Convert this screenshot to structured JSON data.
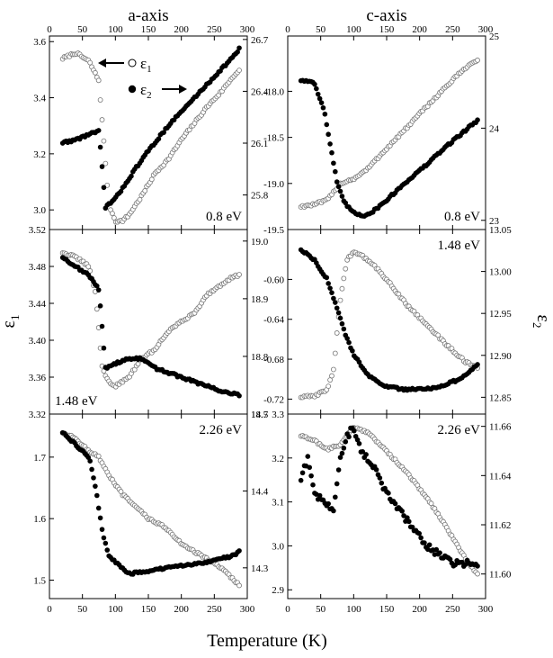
{
  "figure": {
    "col_titles": [
      "a-axis",
      "c-axis"
    ],
    "x_label": "Temperature (K)",
    "left_label_main": "ε",
    "left_label_sub": "1",
    "right_label_main": "ε",
    "right_label_sub": "2",
    "legend": [
      {
        "main": "ε",
        "sub": "1",
        "marker": "open circle",
        "arrow": "left"
      },
      {
        "main": "ε",
        "sub": "2",
        "marker": "filled circle",
        "arrow": "right"
      }
    ]
  },
  "chart_data": [
    {
      "type": "scatter",
      "panel": "a-axis-0.8eV",
      "column": "a-axis",
      "annotation": "0.8 eV",
      "annot_pos": "bottom-right",
      "xlim": [
        0,
        300
      ],
      "ylim": [
        2.93,
        3.62
      ],
      "y2lim": [
        25.6,
        26.72
      ],
      "x_ticks": [
        "0",
        "50",
        "100",
        "150",
        "200",
        "250",
        "300"
      ],
      "y_ticks": [
        3.0,
        3.2,
        3.4,
        3.6
      ],
      "y_tick_labels": [
        "3.0",
        "3.2",
        "3.4",
        "3.6"
      ],
      "y2_ticks": [
        25.8,
        26.1,
        26.4,
        26.7
      ],
      "y2_tick_labels": [
        "25.8",
        "26.1",
        "26.4",
        "26.7"
      ],
      "series": [
        {
          "name": "ε1",
          "axis": "left",
          "marker": "open",
          "x": [
            20,
            40,
            60,
            75,
            90,
            100,
            110,
            120,
            140,
            160,
            180,
            200,
            220,
            240,
            260,
            280,
            290
          ],
          "y": [
            3.54,
            3.56,
            3.53,
            3.46,
            3.02,
            2.96,
            2.96,
            2.98,
            3.05,
            3.13,
            3.18,
            3.25,
            3.31,
            3.37,
            3.42,
            3.48,
            3.5
          ]
        },
        {
          "name": "ε2",
          "axis": "left",
          "marker": "filled",
          "x": [
            20,
            40,
            60,
            75,
            85,
            100,
            120,
            140,
            160,
            180,
            200,
            220,
            240,
            260,
            280,
            290
          ],
          "y": [
            3.24,
            3.25,
            3.27,
            3.28,
            3.01,
            3.04,
            3.11,
            3.18,
            3.24,
            3.3,
            3.35,
            3.4,
            3.45,
            3.5,
            3.55,
            3.58
          ]
        }
      ]
    },
    {
      "type": "scatter",
      "panel": "c-axis-0.8eV",
      "column": "c-axis",
      "annotation": "0.8 eV",
      "annot_pos": "bottom-right",
      "xlim": [
        0,
        300
      ],
      "ylim": [
        -19.5,
        -17.4
      ],
      "y2lim": [
        22.9,
        25.0
      ],
      "x_ticks": [
        "0",
        "50",
        "100",
        "150",
        "200",
        "250",
        "300"
      ],
      "y_ticks": [
        -19.5,
        -19.0,
        -18.5,
        -18.0
      ],
      "y_tick_labels": [
        "-19.5",
        "-19.0",
        "-18.5",
        "-18.0"
      ],
      "y2_ticks": [
        23,
        24,
        25
      ],
      "y2_tick_labels": [
        "23",
        "24",
        "25"
      ],
      "series": [
        {
          "name": "ε1",
          "axis": "left",
          "marker": "open",
          "x": [
            20,
            40,
            60,
            80,
            100,
            120,
            150,
            180,
            210,
            240,
            270,
            290
          ],
          "y": [
            -19.25,
            -19.23,
            -19.18,
            -19.0,
            -18.95,
            -18.85,
            -18.62,
            -18.4,
            -18.17,
            -17.95,
            -17.74,
            -17.65
          ]
        },
        {
          "name": "ε2",
          "axis": "left",
          "marker": "filled",
          "x": [
            20,
            40,
            55,
            65,
            75,
            85,
            100,
            115,
            130,
            150,
            180,
            210,
            240,
            270,
            290
          ],
          "y": [
            -17.88,
            -17.9,
            -18.2,
            -18.6,
            -19.0,
            -19.2,
            -19.32,
            -19.35,
            -19.3,
            -19.18,
            -18.98,
            -18.8,
            -18.6,
            -18.42,
            -18.3
          ]
        }
      ]
    },
    {
      "type": "scatter",
      "panel": "a-axis-1.48eV",
      "column": "a-axis",
      "annotation": "1.48 eV",
      "annot_pos": "bottom-left",
      "xlim": [
        0,
        300
      ],
      "ylim": [
        3.32,
        3.52
      ],
      "y2lim": [
        18.7,
        19.02
      ],
      "x_ticks": [
        "0",
        "50",
        "100",
        "150",
        "200",
        "250",
        "300"
      ],
      "y_ticks": [
        3.32,
        3.36,
        3.4,
        3.44,
        3.48,
        3.52
      ],
      "y_tick_labels": [
        "3.32",
        "3.36",
        "3.40",
        "3.44",
        "3.48",
        "3.52"
      ],
      "y2_ticks": [
        18.7,
        18.8,
        18.9,
        19.0
      ],
      "y2_tick_labels": [
        "18.7",
        "18.8",
        "18.9",
        "19.0"
      ],
      "series": [
        {
          "name": "ε1",
          "axis": "left",
          "marker": "open",
          "x": [
            20,
            40,
            60,
            70,
            80,
            90,
            100,
            120,
            140,
            160,
            180,
            200,
            220,
            240,
            260,
            280,
            290
          ],
          "y": [
            3.495,
            3.49,
            3.48,
            3.45,
            3.37,
            3.355,
            3.35,
            3.36,
            3.38,
            3.39,
            3.41,
            3.42,
            3.43,
            3.45,
            3.46,
            3.47,
            3.47
          ]
        },
        {
          "name": "ε2",
          "axis": "left",
          "marker": "filled",
          "x": [
            20,
            40,
            60,
            75,
            85,
            100,
            120,
            140,
            160,
            180,
            200,
            220,
            240,
            260,
            280,
            290
          ],
          "y": [
            3.49,
            3.48,
            3.47,
            3.455,
            3.37,
            3.375,
            3.38,
            3.38,
            3.37,
            3.365,
            3.36,
            3.355,
            3.35,
            3.345,
            3.342,
            3.34
          ]
        }
      ]
    },
    {
      "type": "scatter",
      "panel": "c-axis-1.48eV",
      "column": "c-axis",
      "annotation": "1.48 eV",
      "annot_pos": "top-right",
      "xlim": [
        0,
        300
      ],
      "ylim": [
        -0.735,
        -0.55
      ],
      "y2lim": [
        12.83,
        13.05
      ],
      "x_ticks": [
        "0",
        "50",
        "100",
        "150",
        "200",
        "250",
        "300"
      ],
      "y_ticks": [
        -0.72,
        -0.68,
        -0.64,
        -0.6
      ],
      "y_tick_labels": [
        "-0.72",
        "-0.68",
        "-0.64",
        "-0.60"
      ],
      "y2_ticks": [
        12.85,
        12.9,
        12.95,
        13.0,
        13.05
      ],
      "y2_tick_labels": [
        "12.85",
        "12.90",
        "12.95",
        "13.00",
        "13.05"
      ],
      "series": [
        {
          "name": "ε1",
          "axis": "left",
          "marker": "open",
          "x": [
            20,
            40,
            60,
            70,
            75,
            80,
            90,
            100,
            110,
            130,
            150,
            180,
            210,
            240,
            270,
            290
          ],
          "y": [
            -0.718,
            -0.717,
            -0.71,
            -0.69,
            -0.65,
            -0.62,
            -0.58,
            -0.572,
            -0.575,
            -0.585,
            -0.6,
            -0.625,
            -0.645,
            -0.665,
            -0.683,
            -0.69
          ]
        },
        {
          "name": "ε2",
          "axis": "left",
          "marker": "filled",
          "x": [
            20,
            40,
            60,
            70,
            80,
            90,
            100,
            120,
            140,
            170,
            200,
            230,
            260,
            280,
            290
          ],
          "y": [
            -0.57,
            -0.58,
            -0.6,
            -0.62,
            -0.64,
            -0.66,
            -0.675,
            -0.695,
            -0.705,
            -0.71,
            -0.71,
            -0.708,
            -0.7,
            -0.69,
            -0.685
          ]
        }
      ]
    },
    {
      "type": "scatter",
      "panel": "a-axis-2.26eV",
      "column": "a-axis",
      "annotation": "2.26 eV",
      "annot_pos": "top-right",
      "xlim": [
        0,
        300
      ],
      "ylim": [
        1.47,
        1.77
      ],
      "y2lim": [
        14.26,
        14.5
      ],
      "x_ticks": [
        "0",
        "50",
        "100",
        "150",
        "200",
        "250",
        "300"
      ],
      "y_ticks": [
        1.5,
        1.6,
        1.7
      ],
      "y_tick_labels": [
        "1.5",
        "1.6",
        "1.7"
      ],
      "y2_ticks": [
        14.3,
        14.4,
        14.5
      ],
      "y2_tick_labels": [
        "14.3",
        "14.4",
        "14.5"
      ],
      "series": [
        {
          "name": "ε1",
          "axis": "left",
          "marker": "open",
          "x": [
            20,
            40,
            60,
            75,
            90,
            110,
            130,
            150,
            170,
            200,
            230,
            260,
            280,
            290
          ],
          "y": [
            1.74,
            1.73,
            1.71,
            1.7,
            1.67,
            1.64,
            1.62,
            1.6,
            1.59,
            1.56,
            1.54,
            1.52,
            1.5,
            1.49
          ]
        },
        {
          "name": "ε2",
          "axis": "left",
          "marker": "filled",
          "x": [
            20,
            40,
            60,
            70,
            80,
            90,
            100,
            120,
            150,
            180,
            210,
            240,
            260,
            280,
            290
          ],
          "y": [
            1.74,
            1.72,
            1.7,
            1.65,
            1.58,
            1.54,
            1.53,
            1.51,
            1.515,
            1.52,
            1.525,
            1.53,
            1.535,
            1.54,
            1.55
          ]
        }
      ]
    },
    {
      "type": "scatter",
      "panel": "c-axis-2.26eV",
      "column": "c-axis",
      "annotation": "2.26 eV",
      "annot_pos": "top-right",
      "xlim": [
        0,
        300
      ],
      "ylim": [
        2.88,
        3.3
      ],
      "y2lim": [
        11.59,
        11.665
      ],
      "x_ticks": [
        "0",
        "50",
        "100",
        "150",
        "200",
        "250",
        "300"
      ],
      "y_ticks": [
        2.9,
        3.0,
        3.1,
        3.2,
        3.3
      ],
      "y_tick_labels": [
        "2.9",
        "3.0",
        "3.1",
        "3.2",
        "3.3"
      ],
      "y2_ticks": [
        11.6,
        11.62,
        11.64,
        11.66
      ],
      "y2_tick_labels": [
        "11.60",
        "11.62",
        "11.64",
        "11.66"
      ],
      "series": [
        {
          "name": "ε1",
          "axis": "left",
          "marker": "open",
          "x": [
            20,
            40,
            60,
            80,
            100,
            120,
            140,
            160,
            190,
            220,
            250,
            270,
            290
          ],
          "y": [
            3.25,
            3.24,
            3.22,
            3.23,
            3.27,
            3.26,
            3.23,
            3.2,
            3.15,
            3.09,
            3.02,
            2.97,
            2.93
          ]
        },
        {
          "name": "ε2",
          "axis": "left",
          "marker": "filled",
          "x": [
            20,
            30,
            40,
            55,
            70,
            80,
            90,
            100,
            110,
            130,
            150,
            170,
            190,
            210,
            230,
            250,
            270,
            290
          ],
          "y": [
            3.15,
            3.2,
            3.12,
            3.1,
            3.08,
            3.2,
            3.25,
            3.27,
            3.22,
            3.18,
            3.12,
            3.08,
            3.04,
            3.0,
            2.98,
            2.96,
            2.96,
            2.96
          ]
        }
      ]
    }
  ]
}
